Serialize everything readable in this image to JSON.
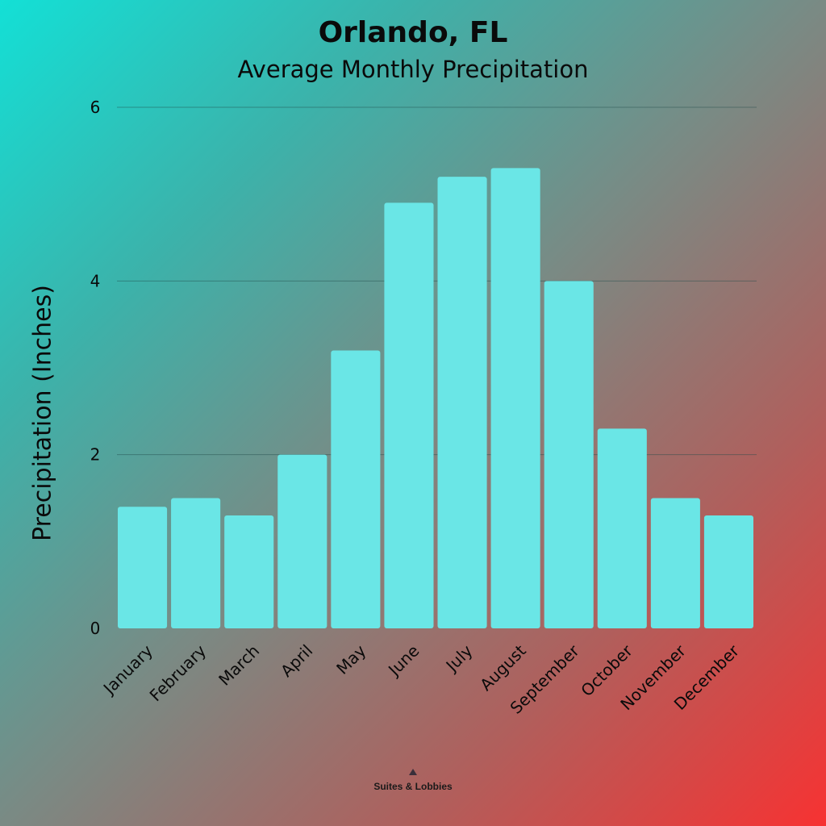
{
  "chart_data": {
    "type": "bar",
    "title": "Orlando, FL",
    "subtitle": "Average Monthly Precipitation",
    "xlabel": "",
    "ylabel": "Precipitation (Inches)",
    "categories": [
      "January",
      "February",
      "March",
      "April",
      "May",
      "June",
      "July",
      "August",
      "September",
      "October",
      "November",
      "December"
    ],
    "values": [
      1.4,
      1.5,
      1.3,
      2.0,
      3.2,
      4.9,
      5.2,
      5.3,
      4.0,
      2.3,
      1.5,
      1.3
    ],
    "ylim": [
      0,
      6
    ],
    "yticks": [
      0,
      2,
      4,
      6
    ],
    "grid": true,
    "legend": "none",
    "bar_color": "#6ae6e6"
  },
  "brand": {
    "text": "Suites & Lobbies",
    "icon": "house-icon"
  }
}
